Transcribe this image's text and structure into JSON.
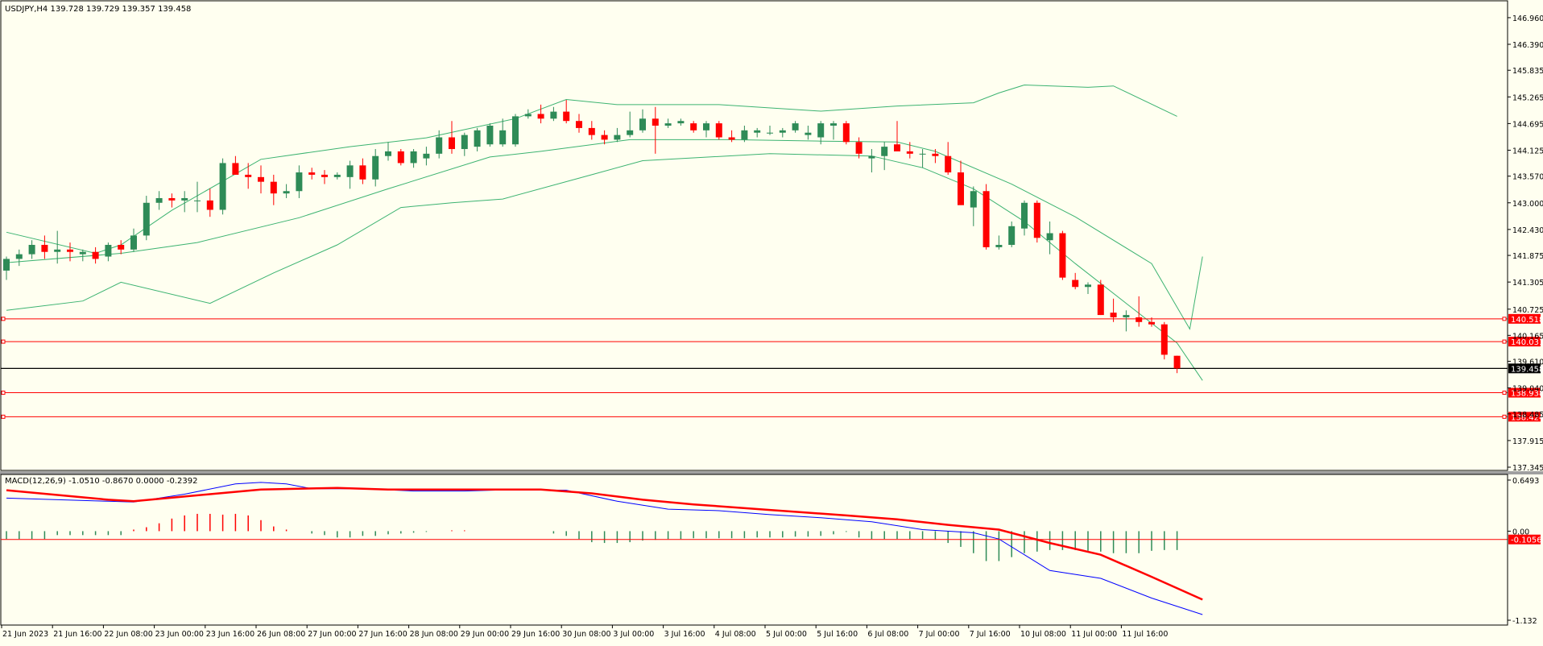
{
  "colors": {
    "background": "#fffff0",
    "frame": "#000000",
    "bull": "#2e8b57",
    "bear": "#ff0000",
    "band": "#3cb371",
    "hline": "#ff0000",
    "bidline": "#000000",
    "macd_main": "#0000ff",
    "macd_signal": "#ff0000"
  },
  "chart_data": [
    {
      "type": "candlestick",
      "title": "USDJPY,H4  139.728 139.729 139.357 139.458",
      "symbol": "USDJPY",
      "timeframe": "H4",
      "ylim": [
        137.345,
        147.2
      ],
      "y_ticks": [
        "146.960",
        "146.390",
        "145.835",
        "145.265",
        "144.695",
        "144.125",
        "143.570",
        "143.000",
        "142.430",
        "141.875",
        "141.305",
        "140.725",
        "140.165",
        "139.610",
        "139.040",
        "138.485",
        "137.915",
        "137.345"
      ],
      "x_labels": [
        "21 Jun 2023",
        "21 Jun 16:00",
        "22 Jun 08:00",
        "23 Jun 00:00",
        "23 Jun 16:00",
        "26 Jun 08:00",
        "27 Jun 00:00",
        "27 Jun 16:00",
        "28 Jun 08:00",
        "29 Jun 00:00",
        "29 Jun 16:00",
        "30 Jun 08:00",
        "3 Jul 00:00",
        "3 Jul 16:00",
        "4 Jul 08:00",
        "5 Jul 00:00",
        "5 Jul 16:00",
        "6 Jul 08:00",
        "7 Jul 00:00",
        "7 Jul 16:00",
        "10 Jul 08:00",
        "11 Jul 00:00",
        "11 Jul 16:00"
      ],
      "candles": [
        [
          141.55,
          141.85,
          141.35,
          141.8
        ],
        [
          141.8,
          142.0,
          141.65,
          141.9
        ],
        [
          141.9,
          142.2,
          141.8,
          142.1
        ],
        [
          142.1,
          142.3,
          141.8,
          141.95
        ],
        [
          141.95,
          142.4,
          141.7,
          142.0
        ],
        [
          142.0,
          142.15,
          141.75,
          141.95
        ],
        [
          141.9,
          142.0,
          141.75,
          141.95
        ],
        [
          141.95,
          142.05,
          141.7,
          141.8
        ],
        [
          141.85,
          142.15,
          141.75,
          142.1
        ],
        [
          142.1,
          142.2,
          141.9,
          142.0
        ],
        [
          142.0,
          142.45,
          141.95,
          142.3
        ],
        [
          142.3,
          143.15,
          142.2,
          143.0
        ],
        [
          143.0,
          143.25,
          142.85,
          143.1
        ],
        [
          143.1,
          143.2,
          142.9,
          143.05
        ],
        [
          143.05,
          143.25,
          142.8,
          143.1
        ],
        [
          143.05,
          143.45,
          142.8,
          143.05
        ],
        [
          143.05,
          143.3,
          142.7,
          142.85
        ],
        [
          142.85,
          143.95,
          142.75,
          143.85
        ],
        [
          143.85,
          144.0,
          143.6,
          143.6
        ],
        [
          143.6,
          143.85,
          143.3,
          143.55
        ],
        [
          143.55,
          143.8,
          143.2,
          143.45
        ],
        [
          143.45,
          143.6,
          142.95,
          143.2
        ],
        [
          143.2,
          143.4,
          143.1,
          143.25
        ],
        [
          143.25,
          143.8,
          143.1,
          143.65
        ],
        [
          143.65,
          143.75,
          143.5,
          143.6
        ],
        [
          143.6,
          143.7,
          143.4,
          143.55
        ],
        [
          143.55,
          143.65,
          143.5,
          143.6
        ],
        [
          143.55,
          143.9,
          143.3,
          143.8
        ],
        [
          143.8,
          143.95,
          143.4,
          143.5
        ],
        [
          143.5,
          144.15,
          143.35,
          144.0
        ],
        [
          144.0,
          144.3,
          143.9,
          144.1
        ],
        [
          144.1,
          144.15,
          143.8,
          143.85
        ],
        [
          143.85,
          144.15,
          143.75,
          144.1
        ],
        [
          143.95,
          144.2,
          143.8,
          144.05
        ],
        [
          144.05,
          144.55,
          143.95,
          144.4
        ],
        [
          144.4,
          144.75,
          144.05,
          144.15
        ],
        [
          144.15,
          144.5,
          144.0,
          144.45
        ],
        [
          144.2,
          144.6,
          144.1,
          144.55
        ],
        [
          144.25,
          144.7,
          144.2,
          144.65
        ],
        [
          144.25,
          144.8,
          144.2,
          144.55
        ],
        [
          144.25,
          144.9,
          144.2,
          144.85
        ],
        [
          144.85,
          145.0,
          144.8,
          144.9
        ],
        [
          144.9,
          145.1,
          144.7,
          144.8
        ],
        [
          144.8,
          145.05,
          144.75,
          144.95
        ],
        [
          144.95,
          145.2,
          144.7,
          144.75
        ],
        [
          144.75,
          144.9,
          144.5,
          144.6
        ],
        [
          144.6,
          144.75,
          144.35,
          144.45
        ],
        [
          144.45,
          144.55,
          144.25,
          144.35
        ],
        [
          144.35,
          144.6,
          144.3,
          144.45
        ],
        [
          144.45,
          144.95,
          144.4,
          144.55
        ],
        [
          144.55,
          145.0,
          144.5,
          144.8
        ],
        [
          144.8,
          145.05,
          144.05,
          144.65
        ],
        [
          144.65,
          144.8,
          144.6,
          144.7
        ],
        [
          144.7,
          144.8,
          144.65,
          144.75
        ],
        [
          144.7,
          144.75,
          144.5,
          144.55
        ],
        [
          144.55,
          144.75,
          144.4,
          144.7
        ],
        [
          144.7,
          144.75,
          144.35,
          144.4
        ],
        [
          144.4,
          144.55,
          144.3,
          144.35
        ],
        [
          144.35,
          144.65,
          144.3,
          144.55
        ],
        [
          144.5,
          144.6,
          144.4,
          144.55
        ],
        [
          144.5,
          144.65,
          144.45,
          144.5
        ],
        [
          144.5,
          144.6,
          144.4,
          144.55
        ],
        [
          144.55,
          144.75,
          144.5,
          144.7
        ],
        [
          144.45,
          144.65,
          144.35,
          144.5
        ],
        [
          144.4,
          144.75,
          144.25,
          144.7
        ],
        [
          144.65,
          144.75,
          144.35,
          144.7
        ],
        [
          144.7,
          144.75,
          144.25,
          144.3
        ],
        [
          144.3,
          144.4,
          143.95,
          144.05
        ],
        [
          143.95,
          144.15,
          143.65,
          144.0
        ],
        [
          144.0,
          144.3,
          143.7,
          144.2
        ],
        [
          144.25,
          144.75,
          144.15,
          144.1
        ],
        [
          144.1,
          144.3,
          143.95,
          144.05
        ],
        [
          144.05,
          144.15,
          143.75,
          144.05
        ],
        [
          144.05,
          144.15,
          143.85,
          144.0
        ],
        [
          144.0,
          144.3,
          143.6,
          143.65
        ],
        [
          143.65,
          143.9,
          142.95,
          142.95
        ],
        [
          142.9,
          143.35,
          142.5,
          143.25
        ],
        [
          143.25,
          143.4,
          142.0,
          142.05
        ],
        [
          142.05,
          142.3,
          142.0,
          142.1
        ],
        [
          142.1,
          142.6,
          142.05,
          142.5
        ],
        [
          142.45,
          143.05,
          142.3,
          143.0
        ],
        [
          143.0,
          143.05,
          142.15,
          142.25
        ],
        [
          142.2,
          142.6,
          141.9,
          142.35
        ],
        [
          142.35,
          142.4,
          141.35,
          141.4
        ],
        [
          141.35,
          141.5,
          141.15,
          141.2
        ],
        [
          141.2,
          141.3,
          141.05,
          141.25
        ],
        [
          141.25,
          141.35,
          140.6,
          140.6
        ],
        [
          140.65,
          140.95,
          140.45,
          140.55
        ],
        [
          140.55,
          140.7,
          140.25,
          140.6
        ],
        [
          140.55,
          141.0,
          140.35,
          140.45
        ],
        [
          140.45,
          140.55,
          140.35,
          140.4
        ],
        [
          140.4,
          140.45,
          139.65,
          139.75
        ],
        [
          139.728,
          139.729,
          139.357,
          139.458
        ]
      ],
      "bands": {
        "upper": [
          [
            0,
            142.37
          ],
          [
            7,
            141.92
          ],
          [
            9,
            142.1
          ],
          [
            13,
            142.84
          ],
          [
            20,
            143.93
          ],
          [
            27,
            144.2
          ],
          [
            33,
            144.39
          ],
          [
            40,
            144.8
          ],
          [
            44,
            145.21
          ],
          [
            48,
            145.1
          ],
          [
            56,
            145.1
          ],
          [
            64,
            144.96
          ],
          [
            70,
            145.07
          ],
          [
            76,
            145.14
          ],
          [
            78,
            145.35
          ],
          [
            80,
            145.52
          ],
          [
            85,
            145.47
          ],
          [
            87,
            145.5
          ],
          [
            92,
            144.85
          ]
        ],
        "middle": [
          [
            0,
            141.72
          ],
          [
            9,
            141.92
          ],
          [
            15,
            142.15
          ],
          [
            23,
            142.68
          ],
          [
            30,
            143.3
          ],
          [
            38,
            143.98
          ],
          [
            42,
            144.1
          ],
          [
            49,
            144.35
          ],
          [
            57,
            144.35
          ],
          [
            64,
            144.32
          ],
          [
            70,
            144.3
          ],
          [
            73,
            144.1
          ],
          [
            79,
            143.4
          ],
          [
            84,
            142.7
          ],
          [
            90,
            141.7
          ],
          [
            93,
            140.3
          ],
          [
            94,
            141.85
          ]
        ],
        "lower": [
          [
            0,
            140.7
          ],
          [
            6,
            140.9
          ],
          [
            9,
            141.3
          ],
          [
            16,
            140.85
          ],
          [
            21,
            141.5
          ],
          [
            26,
            142.1
          ],
          [
            31,
            142.9
          ],
          [
            35,
            143.0
          ],
          [
            39,
            143.08
          ],
          [
            46,
            143.6
          ],
          [
            50,
            143.9
          ],
          [
            60,
            144.05
          ],
          [
            68,
            144.0
          ],
          [
            72,
            143.75
          ],
          [
            76,
            143.3
          ],
          [
            80,
            142.6
          ],
          [
            84,
            141.7
          ],
          [
            88,
            140.85
          ],
          [
            92,
            140.0
          ],
          [
            94,
            139.2
          ]
        ]
      },
      "levels": [
        {
          "label": "140.518",
          "value": 140.518
        },
        {
          "label": "140.031",
          "value": 140.031
        },
        {
          "label": "138.938",
          "value": 138.938
        },
        {
          "label": "138.424",
          "value": 138.424
        }
      ],
      "bid_line": {
        "label": "139.458",
        "value": 139.458
      }
    },
    {
      "type": "macd",
      "title": "MACD(12,26,9) -1.0510 -0.8670 0.0000 -0.2392",
      "ylim": [
        -1.132,
        0.6493
      ],
      "y_ticks": [
        "0.6493",
        "0.00",
        "-1.132"
      ],
      "level": {
        "label": "-0.1056",
        "value": -0.1056
      },
      "histogram": [
        -0.1,
        -0.1,
        -0.1,
        -0.1,
        -0.05,
        -0.05,
        -0.05,
        -0.05,
        -0.05,
        -0.05,
        0.02,
        0.05,
        0.1,
        0.16,
        0.2,
        0.22,
        0.22,
        0.21,
        0.22,
        0.2,
        0.14,
        0.06,
        0.02,
        0.0,
        -0.03,
        -0.05,
        -0.08,
        -0.08,
        -0.06,
        -0.06,
        -0.04,
        -0.03,
        -0.02,
        -0.01,
        0.0,
        0.01,
        0.01,
        0.0,
        0.0,
        0.0,
        0.0,
        0.0,
        0.0,
        -0.03,
        -0.06,
        -0.1,
        -0.14,
        -0.15,
        -0.15,
        -0.14,
        -0.12,
        -0.11,
        -0.1,
        -0.1,
        -0.09,
        -0.09,
        -0.09,
        -0.09,
        -0.09,
        -0.08,
        -0.08,
        -0.08,
        -0.07,
        -0.07,
        -0.06,
        -0.04,
        -0.01,
        -0.08,
        -0.1,
        -0.1,
        -0.1,
        -0.1,
        -0.1,
        -0.11,
        -0.15,
        -0.2,
        -0.28,
        -0.38,
        -0.38,
        -0.33,
        -0.28,
        -0.26,
        -0.24,
        -0.24,
        -0.24,
        -0.25,
        -0.26,
        -0.28,
        -0.28,
        -0.28,
        -0.25,
        -0.24,
        -0.24
      ],
      "main": [
        [
          0,
          0.42
        ],
        [
          8,
          0.38
        ],
        [
          10,
          0.37
        ],
        [
          14,
          0.47
        ],
        [
          18,
          0.6
        ],
        [
          20,
          0.62
        ],
        [
          22,
          0.6
        ],
        [
          24,
          0.54
        ],
        [
          28,
          0.54
        ],
        [
          32,
          0.51
        ],
        [
          36,
          0.51
        ],
        [
          40,
          0.53
        ],
        [
          44,
          0.52
        ],
        [
          48,
          0.38
        ],
        [
          52,
          0.28
        ],
        [
          56,
          0.26
        ],
        [
          60,
          0.21
        ],
        [
          64,
          0.17
        ],
        [
          68,
          0.12
        ],
        [
          72,
          0.02
        ],
        [
          76,
          -0.02
        ],
        [
          78,
          -0.1
        ],
        [
          80,
          -0.3
        ],
        [
          82,
          -0.5
        ],
        [
          86,
          -0.6
        ],
        [
          90,
          -0.85
        ],
        [
          94,
          -1.06
        ]
      ],
      "signal": [
        [
          0,
          0.52
        ],
        [
          8,
          0.4
        ],
        [
          10,
          0.38
        ],
        [
          16,
          0.47
        ],
        [
          20,
          0.53
        ],
        [
          26,
          0.55
        ],
        [
          30,
          0.53
        ],
        [
          36,
          0.53
        ],
        [
          42,
          0.53
        ],
        [
          46,
          0.48
        ],
        [
          50,
          0.4
        ],
        [
          54,
          0.34
        ],
        [
          60,
          0.27
        ],
        [
          66,
          0.2
        ],
        [
          70,
          0.15
        ],
        [
          74,
          0.08
        ],
        [
          78,
          0.02
        ],
        [
          82,
          -0.15
        ],
        [
          86,
          -0.3
        ],
        [
          90,
          -0.58
        ],
        [
          94,
          -0.87
        ]
      ]
    }
  ]
}
